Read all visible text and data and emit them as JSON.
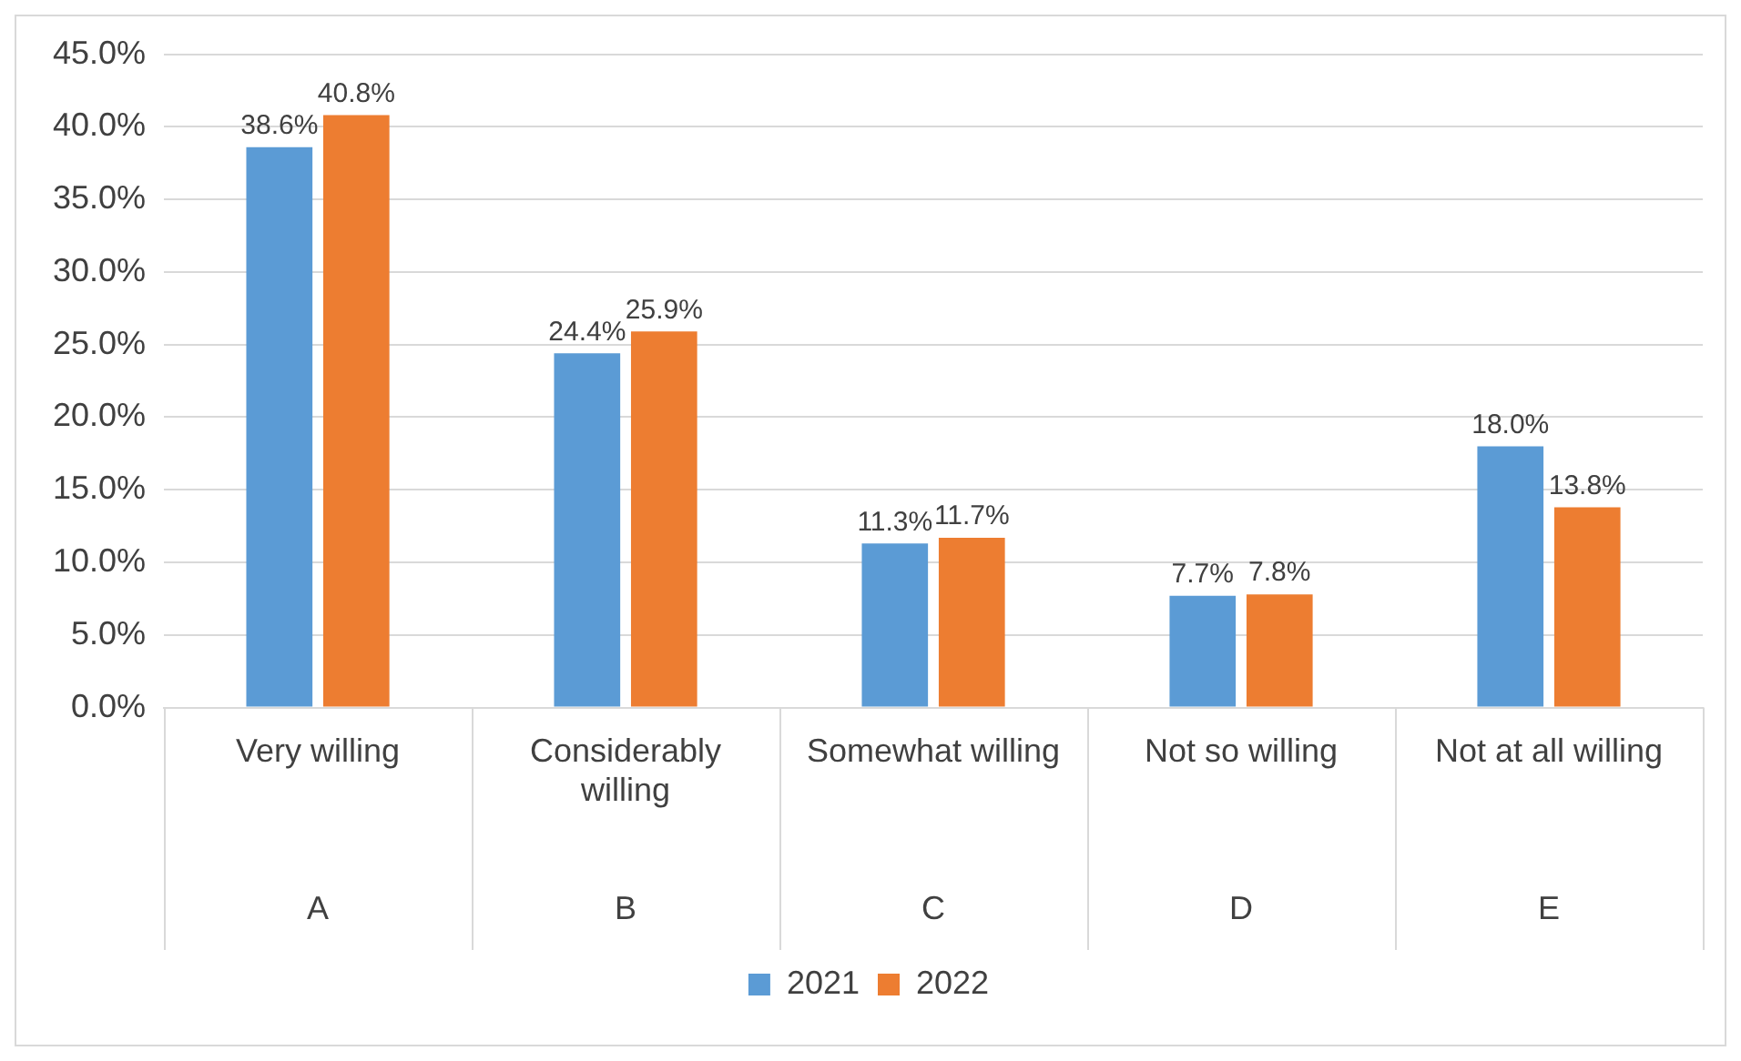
{
  "chart_data": {
    "type": "bar",
    "categories": [
      "Very willing",
      "Considerably willing",
      "Somewhat willing",
      "Not so willing",
      "Not at all willing"
    ],
    "annotations": [
      "A",
      "B",
      "C",
      "D",
      "E"
    ],
    "series": [
      {
        "name": "2021",
        "color": "#5b9bd5",
        "values": [
          38.6,
          24.4,
          11.3,
          7.7,
          18.0
        ],
        "value_labels": [
          "38.6%",
          "24.4%",
          "11.3%",
          "7.7%",
          "18.0%"
        ]
      },
      {
        "name": "2022",
        "color": "#ed7d31",
        "values": [
          40.8,
          25.9,
          11.7,
          7.8,
          13.8
        ],
        "value_labels": [
          "40.8%",
          "25.9%",
          "11.7%",
          "7.8%",
          "13.8%"
        ]
      }
    ],
    "ylim": [
      0,
      45
    ],
    "yticks": [
      {
        "value": 0,
        "label": "0.0%"
      },
      {
        "value": 5,
        "label": "5.0%"
      },
      {
        "value": 10,
        "label": "10.0%"
      },
      {
        "value": 15,
        "label": "15.0%"
      },
      {
        "value": 20,
        "label": "20.0%"
      },
      {
        "value": 25,
        "label": "25.0%"
      },
      {
        "value": 30,
        "label": "30.0%"
      },
      {
        "value": 35,
        "label": "35.0%"
      },
      {
        "value": 40,
        "label": "40.0%"
      },
      {
        "value": 45,
        "label": "45.0%"
      }
    ],
    "grid": "y",
    "legend": "bottom"
  }
}
